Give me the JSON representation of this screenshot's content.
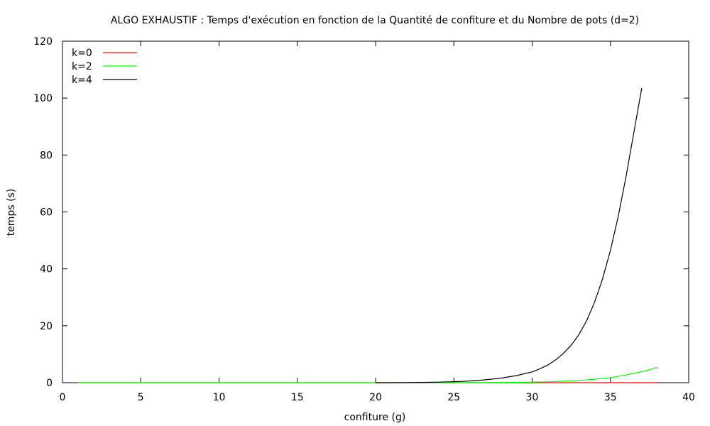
{
  "chart_data": {
    "type": "line",
    "title": "ALGO EXHAUSTIF : Temps d'exécution en fonction de la Quantité de confiture et du Nombre de pots (d=2)",
    "xlabel": "confiture (g)",
    "ylabel": "temps (s)",
    "xlim": [
      0,
      40
    ],
    "ylim": [
      0,
      120
    ],
    "xticks": [
      0,
      5,
      10,
      15,
      20,
      25,
      30,
      35,
      40
    ],
    "yticks": [
      0,
      20,
      40,
      60,
      80,
      100,
      120
    ],
    "grid": false,
    "legend_position": "top-left",
    "series": [
      {
        "name": "k=0",
        "color": "#ff0000",
        "x": [
          1,
          2,
          3,
          4,
          5,
          6,
          7,
          8,
          9,
          10,
          11,
          12,
          13,
          14,
          15,
          16,
          17,
          18,
          19,
          20,
          21,
          22,
          23,
          24,
          25,
          26,
          27,
          28,
          29,
          30,
          31,
          32,
          33,
          34,
          35,
          36,
          37,
          38
        ],
        "y": [
          0,
          0,
          0,
          0,
          0,
          0,
          0,
          0,
          0,
          0,
          0,
          0,
          0,
          0,
          0,
          0,
          0,
          0,
          0,
          0,
          0,
          0,
          0,
          0,
          0,
          0,
          0,
          0,
          0,
          0,
          0,
          0,
          0,
          0,
          0,
          0,
          0,
          0
        ]
      },
      {
        "name": "k=2",
        "color": "#00ff00",
        "x": [
          1,
          2,
          3,
          4,
          5,
          6,
          7,
          8,
          9,
          10,
          11,
          12,
          13,
          14,
          15,
          16,
          17,
          18,
          19,
          20,
          21,
          22,
          23,
          24,
          25,
          26,
          27,
          28,
          29,
          30,
          31,
          32,
          33,
          34,
          35,
          36,
          37,
          38
        ],
        "y": [
          0,
          0,
          0,
          0,
          0,
          0,
          0,
          0,
          0,
          0,
          0,
          0,
          0,
          0,
          0,
          0,
          0,
          0,
          0,
          0,
          0,
          0,
          0,
          0.01,
          0.02,
          0.03,
          0.05,
          0.08,
          0.13,
          0.21,
          0.33,
          0.52,
          0.8,
          1.2,
          1.8,
          2.7,
          3.9,
          5.4
        ]
      },
      {
        "name": "k=4",
        "color": "#000000",
        "x": [
          20,
          21,
          22,
          23,
          24,
          25,
          26,
          27,
          28,
          29,
          30,
          30.5,
          31,
          31.5,
          32,
          32.5,
          33,
          33.5,
          34,
          34.5,
          35,
          35.5,
          36,
          36.5,
          37
        ],
        "y": [
          0,
          0,
          0.05,
          0.1,
          0.2,
          0.35,
          0.6,
          1.0,
          1.6,
          2.5,
          3.8,
          4.9,
          6.2,
          8.0,
          10.3,
          13.2,
          17.0,
          22.0,
          28.5,
          36.5,
          46.5,
          58.5,
          72.5,
          88.0,
          103.5
        ]
      }
    ]
  }
}
